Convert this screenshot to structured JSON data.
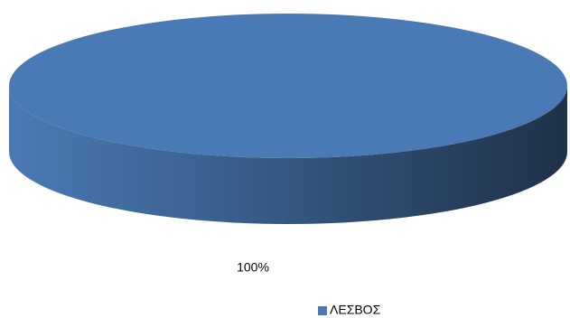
{
  "chart_data": {
    "type": "pie3d",
    "categories": [
      "ΛΕΣΒΟΣ"
    ],
    "values": [
      100
    ],
    "value_labels": [
      "100%"
    ],
    "colors": [
      "#4a7ab5"
    ],
    "legend": "bottom"
  }
}
